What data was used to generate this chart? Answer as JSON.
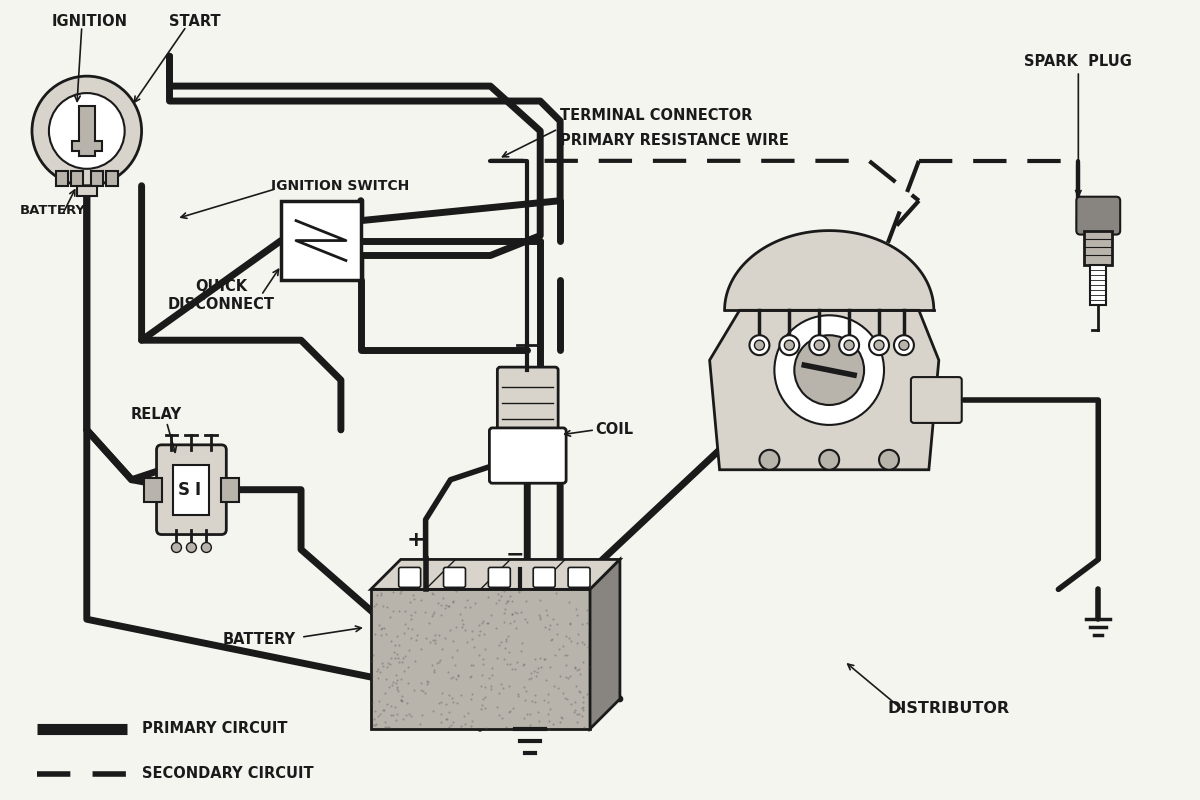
{
  "bg_color": "#f5f5f0",
  "line_color": "#1a1a1a",
  "fill_light": "#d8d4cc",
  "fill_mid": "#b8b4ac",
  "fill_dark": "#888480",
  "labels": {
    "ignition": "IGNITION",
    "start": "START",
    "battery_top": "BATTERY",
    "ignition_switch": "IGNITION SWITCH",
    "terminal_connector": "TERMINAL CONNECTOR",
    "primary_resistance": "PRIMARY RESISTANCE WIRE",
    "quick_disconnect": "QUICK\nDISCONNECT",
    "relay": "RELAY",
    "coil": "COIL",
    "spark_plug": "SPARK  PLUG",
    "battery": "BATTERY",
    "distributor": "DISTRIBUTOR",
    "primary_circuit": "PRIMARY CIRCUIT",
    "secondary_circuit": "SECONDARY CIRCUIT"
  },
  "font_size": 10.5,
  "lw_primary": 5,
  "lw_thin": 1.5
}
